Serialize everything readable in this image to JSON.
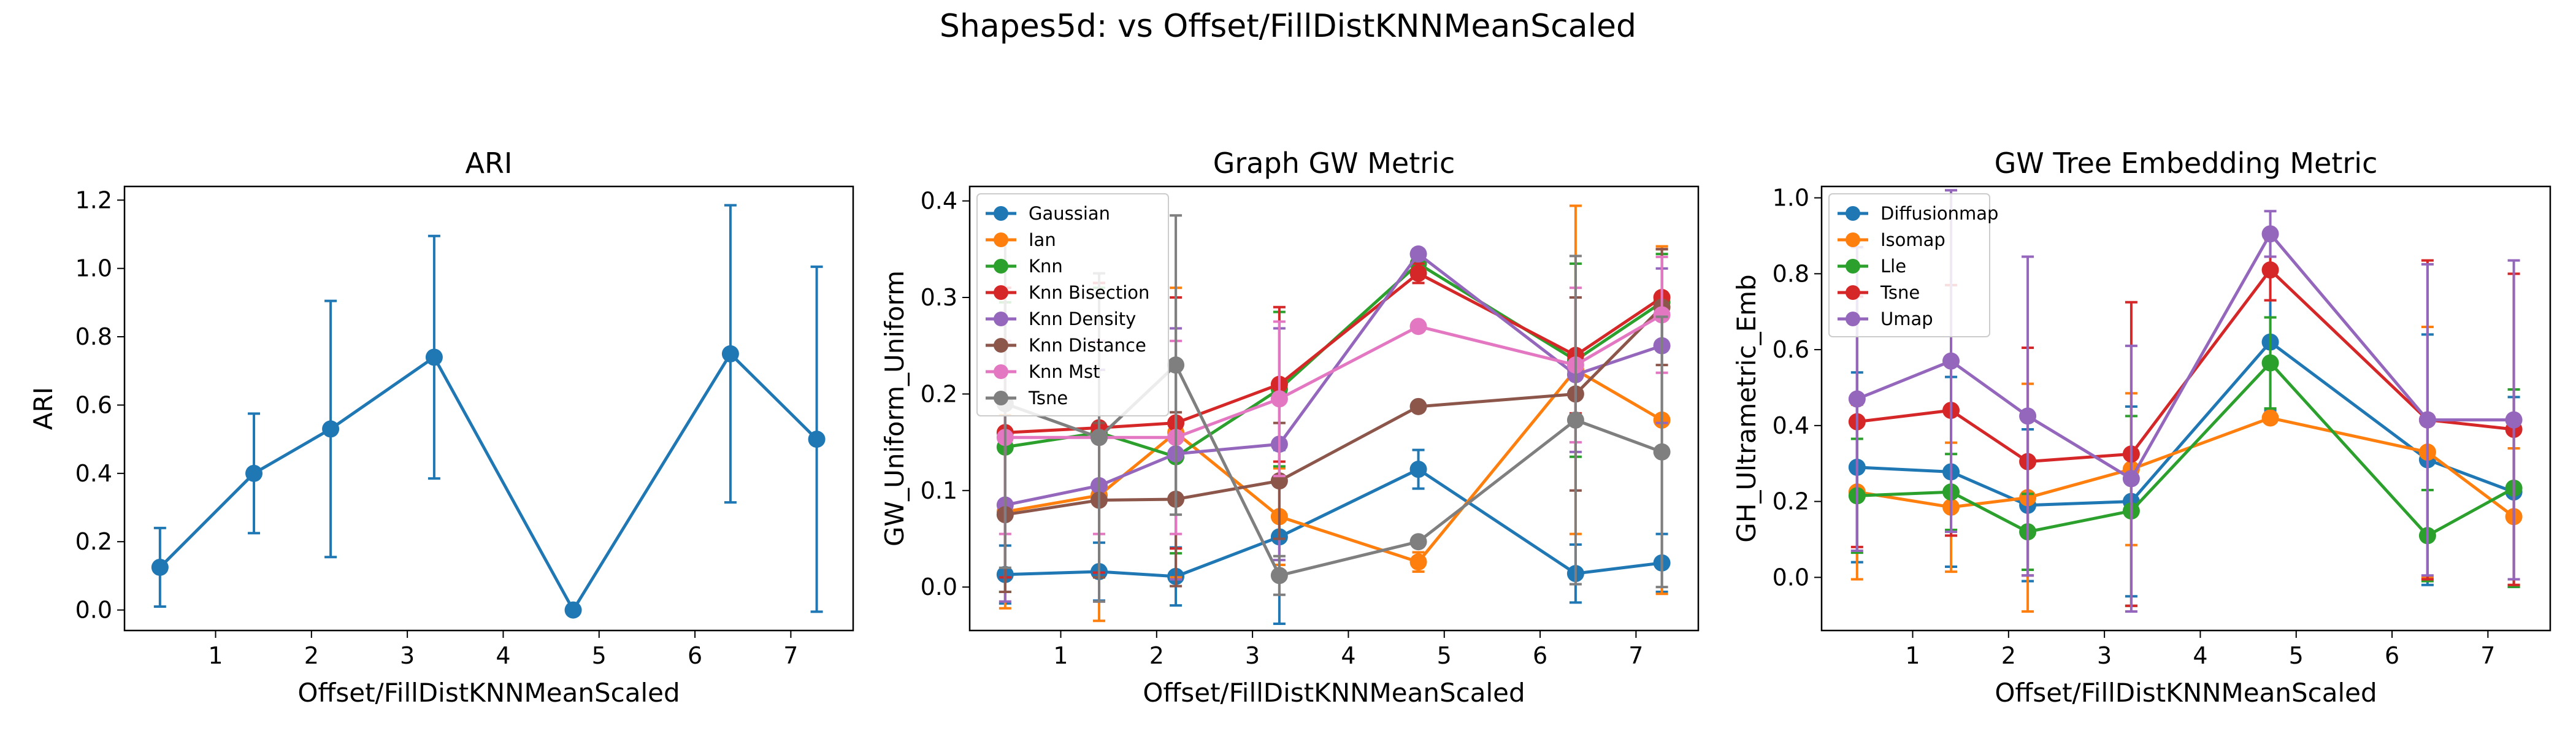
{
  "figure": {
    "suptitle": "Shapes5d: vs Offset/FillDistKNNMeanScaled"
  },
  "chart_data": [
    {
      "type": "line",
      "title": "ARI",
      "xlabel": "Offset/FillDistKNNMeanScaled",
      "ylabel": "ARI",
      "xlim": [
        0.05,
        7.65
      ],
      "ylim": [
        -0.06,
        1.24
      ],
      "xticks": [
        "1",
        "2",
        "3",
        "4",
        "5",
        "6",
        "7"
      ],
      "yticks": [
        "0.0",
        "0.2",
        "0.4",
        "0.6",
        "0.8",
        "1.0",
        "1.2"
      ],
      "legend": "none",
      "x": [
        0.42,
        1.4,
        2.2,
        3.28,
        4.73,
        6.37,
        7.27
      ],
      "series": [
        {
          "name": "",
          "color": "#1f77b4",
          "values": [
            0.125,
            0.4,
            0.53,
            0.74,
            0.0,
            0.75,
            0.5
          ],
          "errors": [
            0.115,
            0.175,
            0.375,
            0.355,
            0.0,
            0.435,
            0.505
          ]
        }
      ]
    },
    {
      "type": "line",
      "title": "Graph GW Metric",
      "xlabel": "Offset/FillDistKNNMeanScaled",
      "ylabel": "GW_Uniform_Uniform",
      "xlim": [
        0.05,
        7.65
      ],
      "ylim": [
        -0.045,
        0.415
      ],
      "xticks": [
        "1",
        "2",
        "3",
        "4",
        "5",
        "6",
        "7"
      ],
      "yticks": [
        "0.0",
        "0.1",
        "0.2",
        "0.3",
        "0.4"
      ],
      "legend": "upper-left",
      "x": [
        0.42,
        1.4,
        2.2,
        3.28,
        4.73,
        6.37,
        7.27
      ],
      "series": [
        {
          "name": "Gaussian",
          "color": "#1f77b4",
          "values": [
            0.013,
            0.016,
            0.011,
            0.052,
            0.122,
            0.014,
            0.025
          ],
          "errors": [
            0.03,
            0.03,
            0.03,
            0.09,
            0.02,
            0.03,
            0.03
          ]
        },
        {
          "name": "Ian",
          "color": "#ff7f0e",
          "values": [
            0.078,
            0.095,
            0.16,
            0.073,
            0.026,
            0.225,
            0.173
          ],
          "errors": [
            0.1,
            0.13,
            0.15,
            0.05,
            0.01,
            0.17,
            0.18
          ]
        },
        {
          "name": "Knn",
          "color": "#2ca02c",
          "values": [
            0.145,
            0.16,
            0.135,
            0.205,
            0.335,
            0.235,
            0.295
          ],
          "errors": [
            0.15,
            0.15,
            0.1,
            0.08,
            0.01,
            0.1,
            0.05
          ]
        },
        {
          "name": "Knn Bisection",
          "color": "#d62728",
          "values": [
            0.16,
            0.165,
            0.17,
            0.21,
            0.325,
            0.24,
            0.3
          ],
          "errors": [
            0.15,
            0.15,
            0.13,
            0.08,
            0.01,
            0.06,
            0.05
          ]
        },
        {
          "name": "Knn Density",
          "color": "#9467bd",
          "values": [
            0.085,
            0.105,
            0.138,
            0.148,
            0.345,
            0.22,
            0.25
          ],
          "errors": [
            0.1,
            0.12,
            0.13,
            0.12,
            0.005,
            0.08,
            0.08
          ]
        },
        {
          "name": "Knn Distance",
          "color": "#8c564b",
          "values": [
            0.075,
            0.09,
            0.091,
            0.11,
            0.187,
            0.2,
            0.29
          ],
          "errors": [
            0.08,
            0.08,
            0.09,
            0.06,
            0.005,
            0.1,
            0.06
          ]
        },
        {
          "name": "Knn Mst",
          "color": "#e377c2",
          "values": [
            0.155,
            0.155,
            0.155,
            0.195,
            0.27,
            0.23,
            0.282
          ],
          "errors": [
            0.1,
            0.1,
            0.1,
            0.08,
            0.005,
            0.08,
            0.06
          ]
        },
        {
          "name": "Tsne",
          "color": "#7f7f7f",
          "values": [
            0.19,
            0.155,
            0.23,
            0.012,
            0.047,
            0.173,
            0.14
          ],
          "errors": [
            0.17,
            0.17,
            0.155,
            0.02,
            0.005,
            0.17,
            0.14
          ]
        }
      ]
    },
    {
      "type": "line",
      "title": "GW Tree Embedding Metric",
      "xlabel": "Offset/FillDistKNNMeanScaled",
      "ylabel": "GH_Ultrametric_Emb",
      "xlim": [
        0.05,
        7.65
      ],
      "ylim": [
        -0.14,
        1.03
      ],
      "xticks": [
        "1",
        "2",
        "3",
        "4",
        "5",
        "6",
        "7"
      ],
      "yticks": [
        "0.0",
        "0.2",
        "0.4",
        "0.6",
        "0.8",
        "1.0"
      ],
      "legend": "upper-left",
      "x": [
        0.42,
        1.4,
        2.2,
        3.28,
        4.73,
        6.37,
        7.27
      ],
      "series": [
        {
          "name": "Diffusionmap",
          "color": "#1f77b4",
          "values": [
            0.29,
            0.278,
            0.19,
            0.2,
            0.62,
            0.31,
            0.225
          ],
          "errors": [
            0.25,
            0.25,
            0.2,
            0.25,
            0.18,
            0.33,
            0.25
          ]
        },
        {
          "name": "Isomap",
          "color": "#ff7f0e",
          "values": [
            0.225,
            0.185,
            0.21,
            0.285,
            0.42,
            0.33,
            0.16
          ],
          "errors": [
            0.23,
            0.17,
            0.3,
            0.2,
            0.005,
            0.33,
            0.18
          ]
        },
        {
          "name": "Lle",
          "color": "#2ca02c",
          "values": [
            0.215,
            0.225,
            0.12,
            0.175,
            0.565,
            0.11,
            0.235
          ],
          "errors": [
            0.15,
            0.1,
            0.1,
            0.25,
            0.12,
            0.12,
            0.26
          ]
        },
        {
          "name": "Tsne",
          "color": "#d62728",
          "values": [
            0.41,
            0.44,
            0.305,
            0.325,
            0.81,
            0.415,
            0.39
          ],
          "errors": [
            0.33,
            0.33,
            0.3,
            0.4,
            0.08,
            0.42,
            0.41
          ]
        },
        {
          "name": "Umap",
          "color": "#9467bd",
          "values": [
            0.47,
            0.57,
            0.425,
            0.26,
            0.905,
            0.415,
            0.415
          ],
          "errors": [
            0.4,
            0.45,
            0.42,
            0.35,
            0.06,
            0.41,
            0.42
          ]
        }
      ]
    }
  ]
}
